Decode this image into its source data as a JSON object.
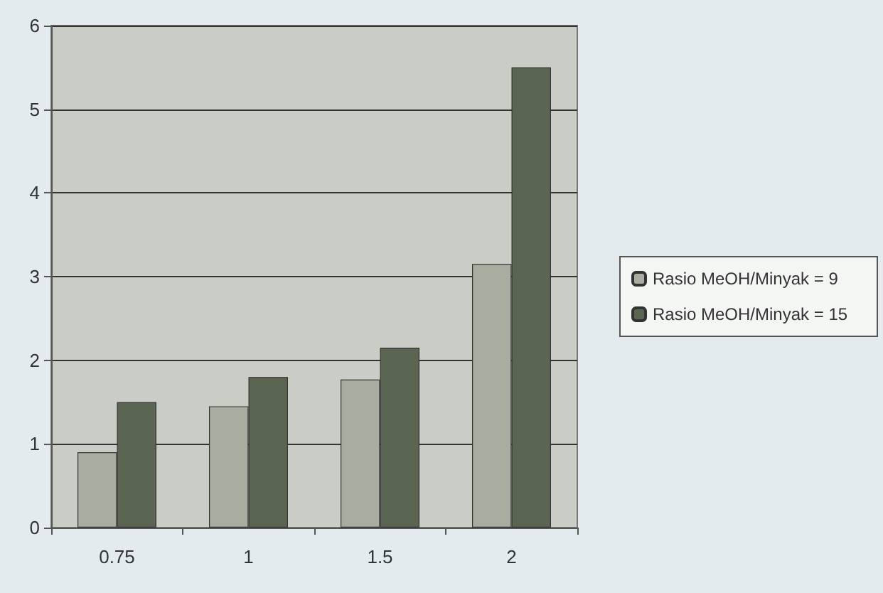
{
  "chart_data": {
    "type": "bar",
    "categories": [
      "0.75",
      "1",
      "1.5",
      "2"
    ],
    "series": [
      {
        "name": "Rasio MeOH/Minyak = 9",
        "color": "#a9ad9f",
        "values": [
          0.9,
          1.45,
          1.77,
          3.15
        ]
      },
      {
        "name": "Rasio MeOH/Minyak = 15",
        "color": "#5b6652",
        "values": [
          1.5,
          1.8,
          2.15,
          5.5
        ]
      }
    ],
    "ylim": [
      0,
      6
    ],
    "yticks": [
      0,
      1,
      2,
      3,
      4,
      5,
      6
    ],
    "grid": "y",
    "legend": "right"
  }
}
